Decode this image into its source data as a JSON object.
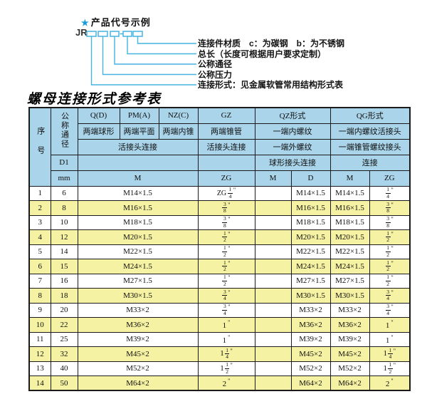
{
  "colors": {
    "header_bg": "#a9d4ea",
    "row_alt_bg": "#f6f2a3",
    "row_bg": "#ffffff",
    "border": "#1b1b1b",
    "accent_line": "#45b4e0",
    "star": "#1b9cd8"
  },
  "diagram": {
    "star": "★",
    "title": "产品代号示例",
    "prefix": "JR",
    "separator": "-",
    "labels": [
      "连接件材质　c：为碳钢　b：为不锈钢",
      "总长（长度可根据用户要求定制）",
      "公称通径",
      "公称压力",
      "连接形式：见金属软管常用结构形式表"
    ]
  },
  "table": {
    "title": "螺母连接形式参考表",
    "header": {
      "seq": "序号",
      "nominal_diameter": "公称通径",
      "d1": "D1",
      "mm": "mm",
      "groups": [
        {
          "code": "Q(D)",
          "desc": "两端球形"
        },
        {
          "code": "PM(A)",
          "desc": "两端平面"
        },
        {
          "code": "NZ(C)",
          "desc": "两端内锥"
        },
        {
          "code": "GZ",
          "desc": "两端锥管"
        }
      ],
      "live_joint": "活接头连接",
      "gz_joint": "活接头连接",
      "m_label": "M",
      "zg_label": "ZG",
      "qz": {
        "code": "QZ形式",
        "row2": "一端内螺纹",
        "row3": "一端外螺纹",
        "row4": "球形接头连接",
        "sub": [
          "M",
          "D"
        ]
      },
      "qg": {
        "code": "QG形式",
        "row2": "一端内螺纹活接头",
        "row3": "一端锥管螺纹接头",
        "row4": "连接",
        "sub": [
          "M",
          "ZG"
        ]
      }
    },
    "rows": [
      {
        "no": "1",
        "dn": "6",
        "m": "M14×1.5",
        "gz_zg": "ZG 1/4\"",
        "qz_m": "",
        "qz_d": "M14×1.5",
        "qg_m": "M14×1.5",
        "qg_zg": "1/4\""
      },
      {
        "no": "2",
        "dn": "8",
        "m": "M16×1.5",
        "gz_zg": "3/8\"",
        "qz_m": "",
        "qz_d": "M16×1.5",
        "qg_m": "M16×1.5",
        "qg_zg": "3/8\""
      },
      {
        "no": "3",
        "dn": "10",
        "m": "M18×1.5",
        "gz_zg": "3/8\"",
        "qz_m": "",
        "qz_d": "M18×1.5",
        "qg_m": "M18×1.5",
        "qg_zg": "3/8\""
      },
      {
        "no": "4",
        "dn": "12",
        "m": "M20×1.5",
        "gz_zg": "1/2\"",
        "qz_m": "",
        "qz_d": "M20×1.5",
        "qg_m": "M20×1.5",
        "qg_zg": "1/2\""
      },
      {
        "no": "5",
        "dn": "14",
        "m": "M22×1.5",
        "gz_zg": "1/2\"",
        "qz_m": "",
        "qz_d": "M22×1.5",
        "qg_m": "M22×1.5",
        "qg_zg": "1/2\""
      },
      {
        "no": "6",
        "dn": "15",
        "m": "M24×1.5",
        "gz_zg": "1/2\"",
        "qz_m": "",
        "qz_d": "M24×1.5",
        "qg_m": "M24×1.5",
        "qg_zg": "1/2\""
      },
      {
        "no": "7",
        "dn": "16",
        "m": "M27×1.5",
        "gz_zg": "1/2\"",
        "qz_m": "",
        "qz_d": "M27×1.5",
        "qg_m": "M27×1.5",
        "qg_zg": "1/2\""
      },
      {
        "no": "8",
        "dn": "18",
        "m": "M30×1.5",
        "gz_zg": "3/4\"",
        "qz_m": "",
        "qz_d": "M30×1.5",
        "qg_m": "M30×1.5",
        "qg_zg": "3/4\""
      },
      {
        "no": "9",
        "dn": "20",
        "m": "M33×2",
        "gz_zg": "3/4\"",
        "qz_m": "",
        "qz_d": "M33×2",
        "qg_m": "M33×2",
        "qg_zg": "3/4\""
      },
      {
        "no": "10",
        "dn": "22",
        "m": "M36×2",
        "gz_zg": "1\"",
        "qz_m": "",
        "qz_d": "M36×2",
        "qg_m": "M36×2",
        "qg_zg": "1\""
      },
      {
        "no": "11",
        "dn": "25",
        "m": "M39×2",
        "gz_zg": "1\"",
        "qz_m": "",
        "qz_d": "M39×2",
        "qg_m": "M39×2",
        "qg_zg": "1\""
      },
      {
        "no": "12",
        "dn": "32",
        "m": "M45×2",
        "gz_zg": "1 1/4\"",
        "qz_m": "",
        "qz_d": "M45×2",
        "qg_m": "M45×2",
        "qg_zg": "1 1/4\""
      },
      {
        "no": "13",
        "dn": "40",
        "m": "M52×2",
        "gz_zg": "1 1/2\"",
        "qz_m": "",
        "qz_d": "M52×2",
        "qg_m": "M52×2",
        "qg_zg": "1 1/2\""
      },
      {
        "no": "14",
        "dn": "50",
        "m": "M64×2",
        "gz_zg": "2\"",
        "qz_m": "",
        "qz_d": "M64×2",
        "qg_m": "M64×2",
        "qg_zg": "2\""
      }
    ]
  }
}
